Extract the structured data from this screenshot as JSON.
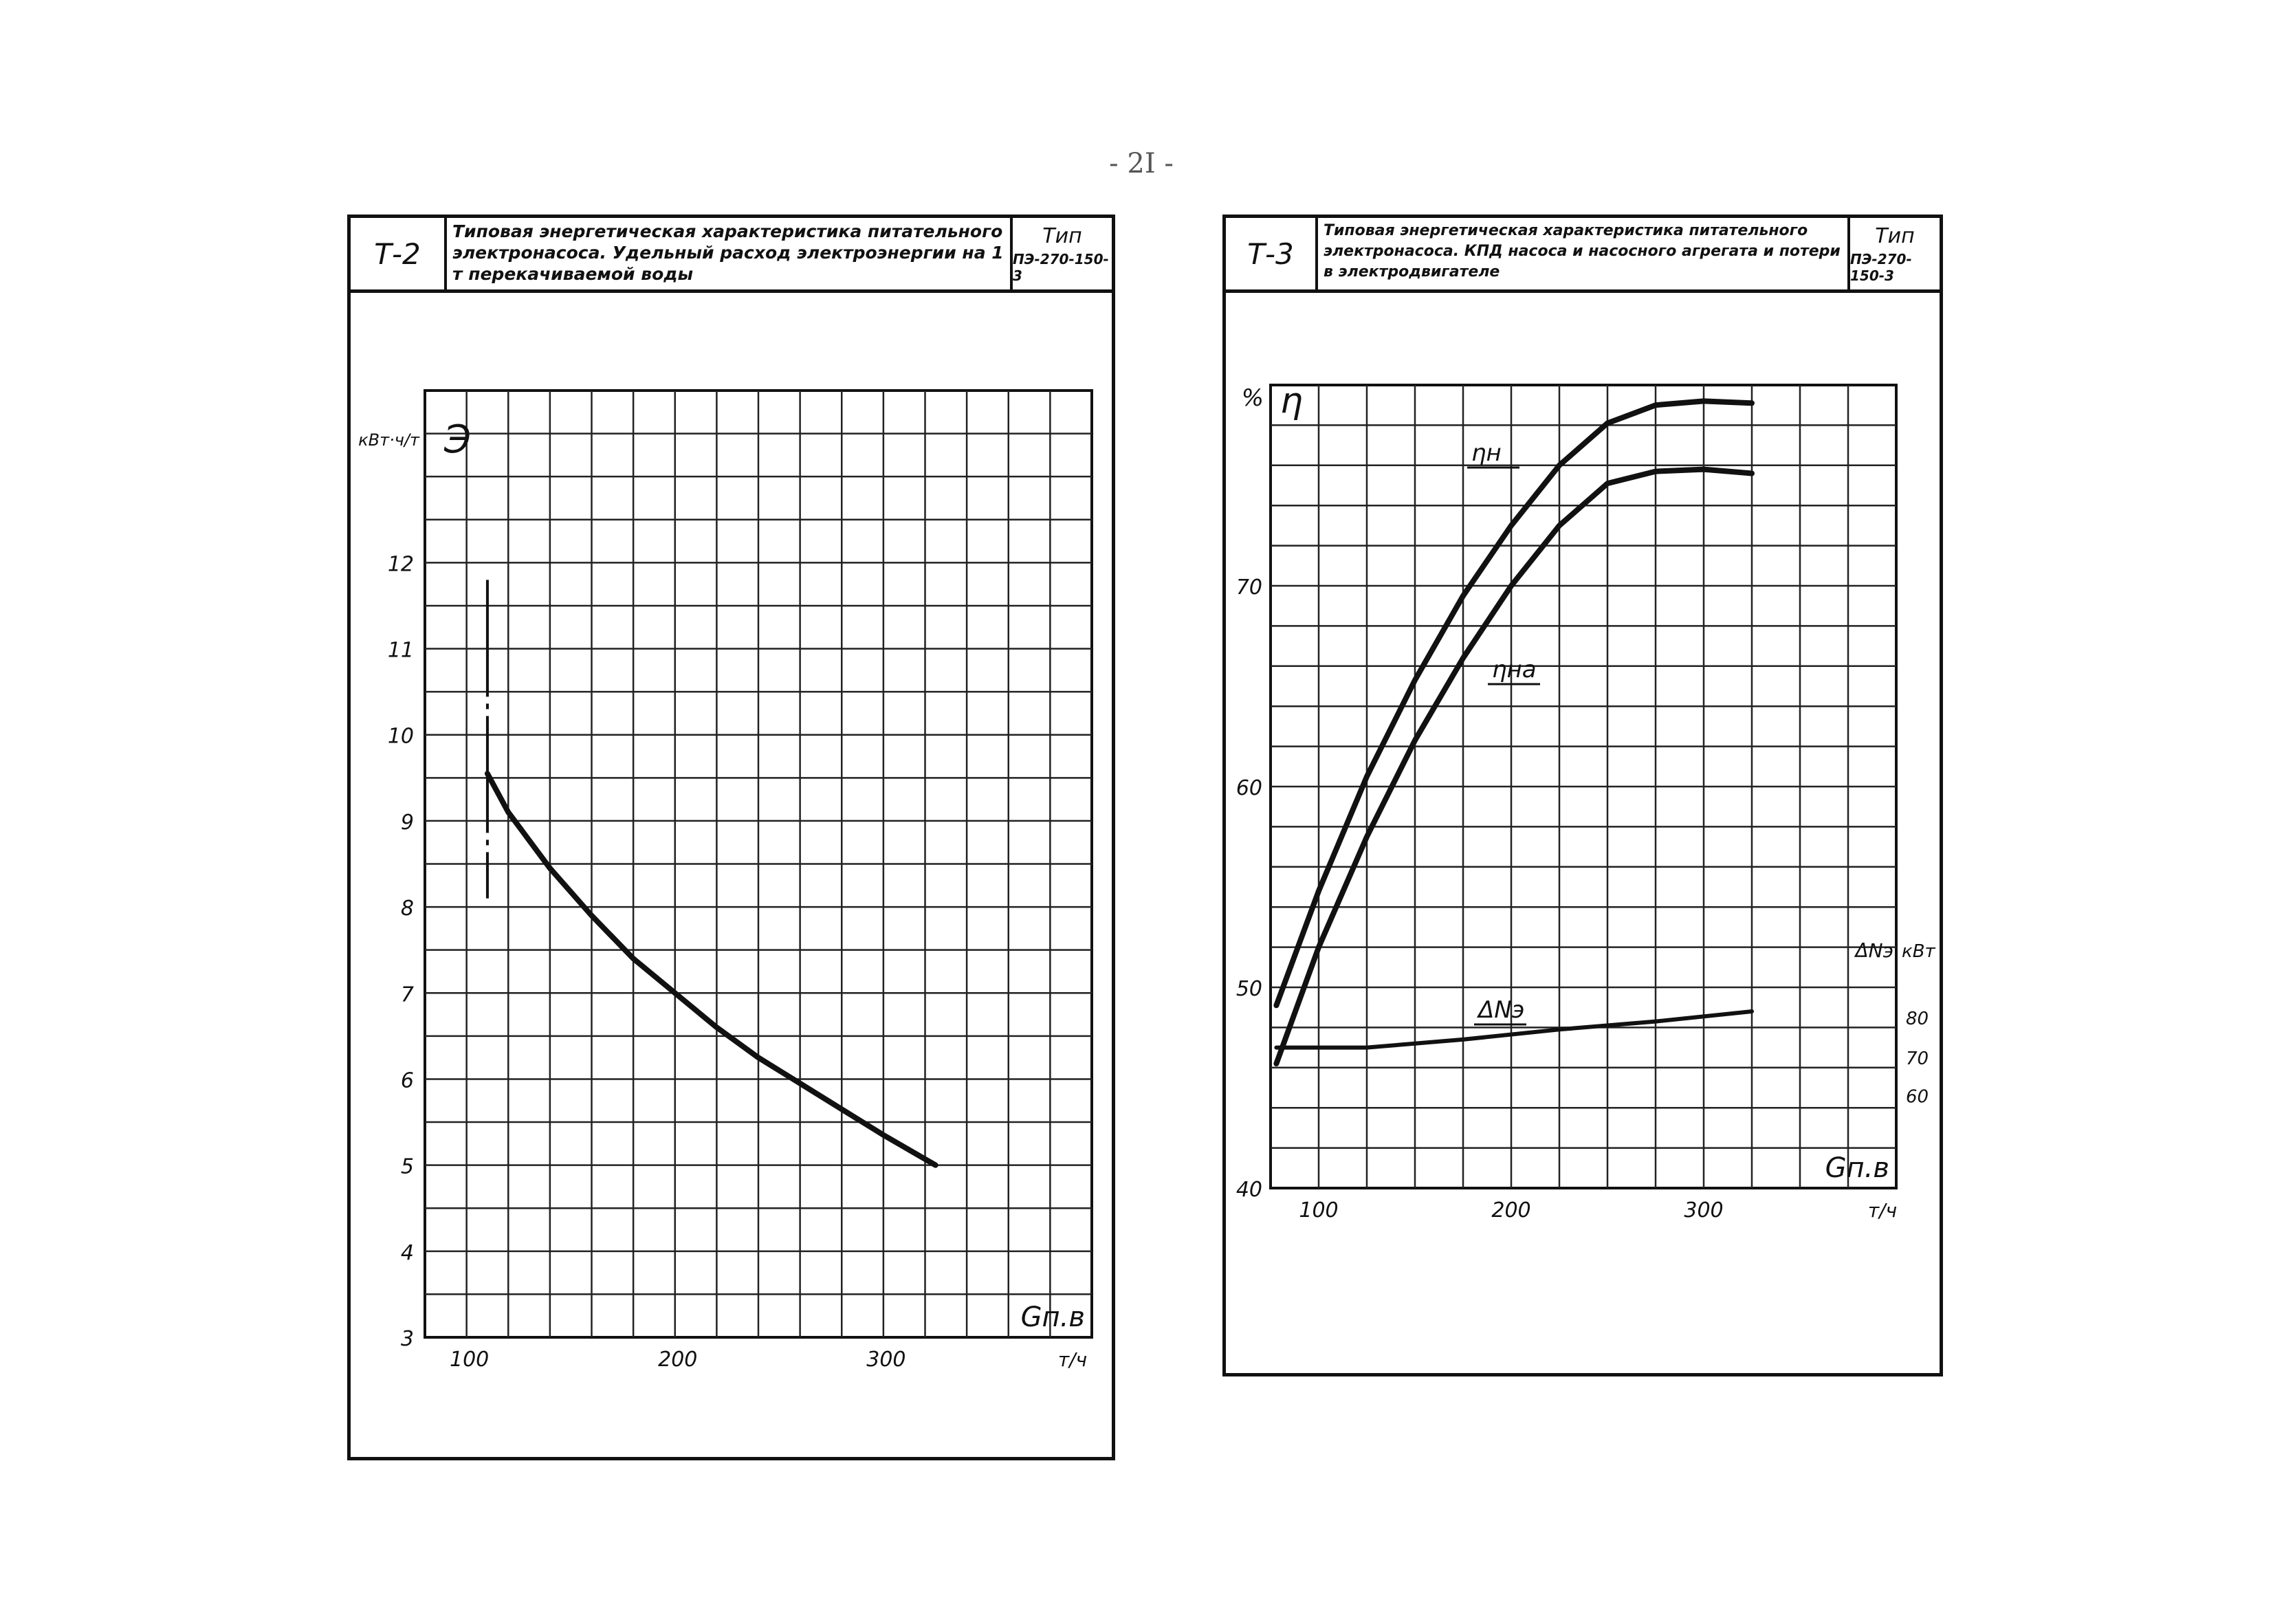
{
  "page_number": "- 2I -",
  "sheets": [
    {
      "code": "Т-2",
      "title": "Типовая энергетическая характеристика питательного электронасоса. Удельный расход электроэнергии на 1 т перекачиваемой воды",
      "type_label": "Тип",
      "type_value": "ПЭ-270-150-3"
    },
    {
      "code": "Т-3",
      "title": "Типовая энергетическая характеристика питательного электронасоса. КПД насоса и насосного агрегата и потери в электродвигателе",
      "type_label": "Тип",
      "type_value": "ПЭ-270-150-3"
    }
  ],
  "chart_data": [
    {
      "type": "line",
      "y_symbol": "Э",
      "y_unit": "кВт·ч/т",
      "x_symbol": "Gп.в",
      "x_unit": "т/ч",
      "xlim": [
        80,
        400
      ],
      "ylim": [
        3,
        14
      ],
      "x_ticks": [
        100,
        200,
        300
      ],
      "y_ticks": [
        3,
        4,
        5,
        6,
        7,
        8,
        9,
        10,
        11,
        12
      ],
      "grid": true,
      "series": [
        {
          "x": [
            110,
            120,
            140,
            160,
            180,
            200,
            220,
            240,
            260,
            280,
            300,
            325
          ],
          "y": [
            9.55,
            9.1,
            8.45,
            7.9,
            7.4,
            7.0,
            6.6,
            6.25,
            5.95,
            5.65,
            5.35,
            5.0
          ]
        }
      ],
      "marker_x": 110,
      "marker_y": [
        8.1,
        11.8
      ]
    },
    {
      "type": "line",
      "y_symbol": "η",
      "y_unit": "%",
      "x_symbol": "Gп.в",
      "x_unit": "т/ч",
      "xlim": [
        75,
        400
      ],
      "ylim": [
        40,
        80
      ],
      "x_ticks": [
        100,
        200,
        300
      ],
      "y_ticks": [
        40,
        50,
        60,
        70
      ],
      "y2_symbol": "ΔNэ",
      "y2_unit": "кВт",
      "y2_ticks": [
        60,
        70,
        80
      ],
      "grid": true,
      "series": [
        {
          "name": "ηн",
          "x": [
            78,
            100,
            125,
            150,
            175,
            200,
            225,
            250,
            275,
            300,
            325
          ],
          "y": [
            49.1,
            54.8,
            60.5,
            65.3,
            69.5,
            73.0,
            76.0,
            78.1,
            79.0,
            79.2,
            79.1
          ]
        },
        {
          "name": "ηна",
          "x": [
            78,
            100,
            125,
            150,
            175,
            200,
            225,
            250,
            275,
            300,
            325
          ],
          "y": [
            46.2,
            52.0,
            57.5,
            62.3,
            66.4,
            70.0,
            73.0,
            75.1,
            75.7,
            75.8,
            75.6
          ]
        },
        {
          "name": "ΔNэ",
          "x": [
            78,
            125,
            175,
            225,
            275,
            325
          ],
          "y": [
            47.0,
            47.0,
            47.4,
            47.9,
            48.3,
            48.8
          ]
        }
      ]
    }
  ]
}
